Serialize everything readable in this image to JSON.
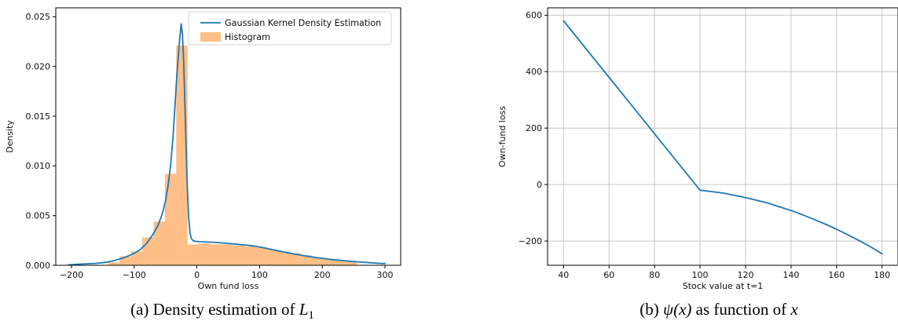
{
  "page": {
    "background": "#ffffff"
  },
  "colors": {
    "line_blue": "#1f77b4",
    "hist_orange": "rgba(255,127,14,0.5)",
    "grid": "#c6c6c6",
    "spine": "#000000",
    "legend_border": "#d4d4d4",
    "legend_bg": "#ffffff",
    "text": "#111111"
  },
  "captions": {
    "a": {
      "prefix": "(a) Density estimation of ",
      "math": "L",
      "sub": "1"
    },
    "b": {
      "prefix": "(b) ",
      "math1": "ψ(x)",
      "mid": " as function of ",
      "math2": "x"
    }
  },
  "chart_data": [
    {
      "id": "a",
      "type": "bar",
      "subtype": "histogram-with-kde-line",
      "xlabel": "Own fund loss",
      "ylabel": "Density",
      "xlim": [
        -225,
        325
      ],
      "ylim": [
        0,
        0.0259
      ],
      "grid": false,
      "xticks": {
        "values": [
          -200,
          -100,
          0,
          100,
          200,
          300
        ],
        "labels": [
          "−200",
          "−100",
          "0",
          "100",
          "200",
          "300"
        ]
      },
      "yticks": {
        "values": [
          0,
          0.005,
          0.01,
          0.015,
          0.02,
          0.025
        ],
        "labels": [
          "0.000",
          "0.005",
          "0.010",
          "0.015",
          "0.020",
          "0.025"
        ]
      },
      "legend": {
        "position": "upper-right",
        "entries": [
          {
            "label": "Gaussian Kernel Density Estimation",
            "sample": "line"
          },
          {
            "label": "Histogram",
            "sample": "patch"
          }
        ]
      },
      "histogram": {
        "bin_edges": [
          -141,
          -123,
          -105,
          -87,
          -69,
          -51,
          -33,
          -15,
          3,
          21,
          39,
          57,
          75,
          93,
          111,
          129,
          147,
          165,
          183,
          201,
          219,
          237,
          255
        ],
        "heights": [
          0.0003,
          0.0009,
          0.0014,
          0.0028,
          0.0044,
          0.0092,
          0.0221,
          0.0021,
          0.0022,
          0.0021,
          0.0021,
          0.002,
          0.0019,
          0.0018,
          0.0016,
          0.0014,
          0.0012,
          0.001,
          0.0008,
          0.0006,
          0.0005,
          0.0004
        ]
      },
      "kde": {
        "x": [
          -205,
          -190,
          -175,
          -160,
          -145,
          -130,
          -115,
          -100,
          -90,
          -80,
          -70,
          -62,
          -55,
          -50,
          -46,
          -42,
          -38,
          -35,
          -32,
          -29,
          -27,
          -25,
          -23,
          -21,
          -19,
          -17,
          -15,
          -13,
          -11,
          -9,
          -6,
          -3,
          0,
          5,
          10,
          20,
          30,
          40,
          50,
          60,
          70,
          80,
          90,
          100,
          110,
          120,
          130,
          140,
          150,
          160,
          170,
          180,
          190,
          200,
          215,
          230,
          245,
          260,
          275,
          290,
          300
        ],
        "y": [
          4e-05,
          0.0001,
          0.00015,
          0.0002,
          0.0003,
          0.0005,
          0.0008,
          0.0012,
          0.0016,
          0.0022,
          0.0031,
          0.004,
          0.0052,
          0.0065,
          0.008,
          0.01,
          0.013,
          0.016,
          0.019,
          0.0215,
          0.023,
          0.0243,
          0.0232,
          0.0205,
          0.016,
          0.0115,
          0.0075,
          0.0048,
          0.0033,
          0.0027,
          0.00248,
          0.00242,
          0.0024,
          0.00238,
          0.00236,
          0.00233,
          0.0023,
          0.00225,
          0.0022,
          0.00215,
          0.00208,
          0.00202,
          0.00195,
          0.00185,
          0.00172,
          0.00158,
          0.00145,
          0.00132,
          0.0012,
          0.00109,
          0.00098,
          0.00088,
          0.00078,
          0.0007,
          0.00058,
          0.00048,
          0.0004,
          0.00032,
          0.00026,
          0.0002,
          0.00017
        ]
      }
    },
    {
      "id": "b",
      "type": "line",
      "xlabel": "Stock value at t=1",
      "ylabel": "Own-fund loss",
      "xlim": [
        33,
        187
      ],
      "ylim": [
        -286,
        626
      ],
      "grid": true,
      "xticks": {
        "values": [
          40,
          60,
          80,
          100,
          120,
          140,
          160,
          180
        ],
        "labels": [
          "40",
          "60",
          "80",
          "100",
          "120",
          "140",
          "160",
          "180"
        ]
      },
      "yticks": {
        "values": [
          -200,
          0,
          200,
          400,
          600
        ],
        "labels": [
          "−200",
          "0",
          "200",
          "400",
          "600"
        ]
      },
      "series": [
        {
          "name": "psi",
          "x": [
            40,
            50,
            60,
            70,
            80,
            90,
            100,
            105,
            110,
            115,
            120,
            125,
            130,
            135,
            140,
            145,
            150,
            155,
            160,
            165,
            170,
            175,
            180
          ],
          "y": [
            580,
            480,
            380,
            280,
            180,
            80,
            -20,
            -25,
            -30,
            -38,
            -46,
            -56,
            -66,
            -79,
            -92,
            -107,
            -123,
            -140,
            -158,
            -178,
            -199,
            -221,
            -245
          ]
        }
      ]
    }
  ]
}
